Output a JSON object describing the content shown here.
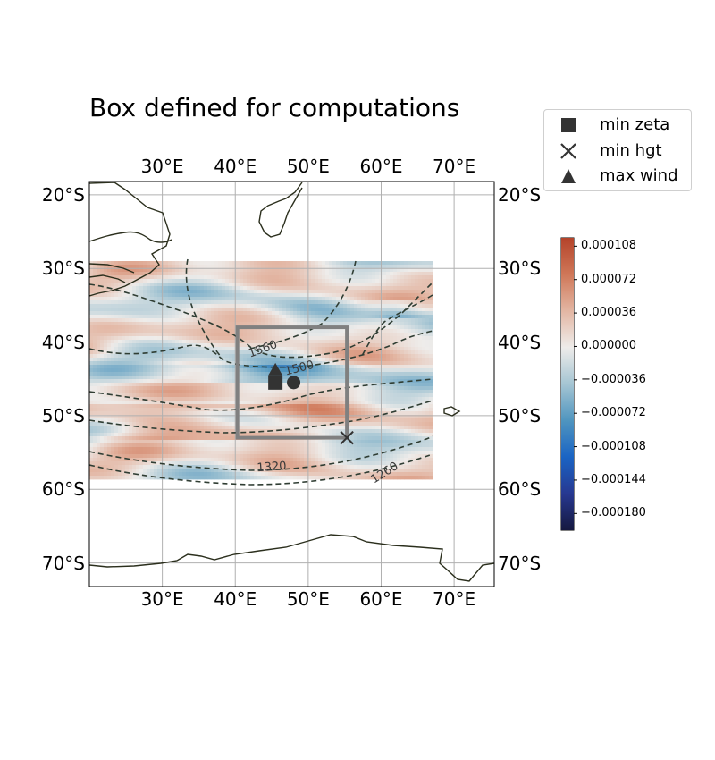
{
  "title": "Box defined for computations",
  "map": {
    "extent": {
      "lon_min": 20,
      "lon_max": 75.5,
      "lat_min": -73.2,
      "lat_max": -18.2
    },
    "lon_ticks": [
      {
        "value": 30,
        "label": "30°E"
      },
      {
        "value": 40,
        "label": "40°E"
      },
      {
        "value": 50,
        "label": "50°E"
      },
      {
        "value": 60,
        "label": "60°E"
      },
      {
        "value": 70,
        "label": "70°E"
      }
    ],
    "lat_ticks": [
      {
        "value": -20,
        "label": "20°S"
      },
      {
        "value": -30,
        "label": "30°S"
      },
      {
        "value": -40,
        "label": "40°S"
      },
      {
        "value": -50,
        "label": "50°S"
      },
      {
        "value": -60,
        "label": "60°S"
      },
      {
        "value": -70,
        "label": "70°S"
      }
    ],
    "field_extent": {
      "lon_min": 20,
      "lon_max": 66.8,
      "lat_min": -58.3,
      "lat_max": -29.0
    },
    "box": {
      "lon_min": 40.3,
      "lon_max": 55.3,
      "lat_min": -53.0,
      "lat_max": -38.0,
      "color": "#808080"
    },
    "markers": {
      "min_zeta": {
        "lon": 45.5,
        "lat": -45.5
      },
      "min_hgt": {
        "lon": 55.3,
        "lat": -53.0
      },
      "max_wind": {
        "lon": 45.5,
        "lat": -43.8
      },
      "circle": {
        "lon": 48.0,
        "lat": -45.5
      }
    },
    "contour_labels": [
      {
        "text": "1560",
        "lon": 43.8,
        "lat": -41.0,
        "rotate": -20
      },
      {
        "text": "1500",
        "lon": 48.8,
        "lat": -43.6,
        "rotate": -14
      },
      {
        "text": "1320",
        "lon": 45.0,
        "lat": -57.0,
        "rotate": -4
      },
      {
        "text": "1260",
        "lon": 60.5,
        "lat": -57.8,
        "rotate": -32
      }
    ]
  },
  "legend": {
    "items": [
      {
        "symbol": "square",
        "label": "min zeta"
      },
      {
        "symbol": "x",
        "label": "min hgt"
      },
      {
        "symbol": "triangle",
        "label": "max wind"
      }
    ]
  },
  "colorbar": {
    "min": -0.000198,
    "max": 0.000117,
    "ticks": [
      {
        "value": 0.000108,
        "label": "0.000108"
      },
      {
        "value": 7.2e-05,
        "label": "0.000072"
      },
      {
        "value": 3.6e-05,
        "label": "0.000036"
      },
      {
        "value": 0.0,
        "label": "0.000000"
      },
      {
        "value": -3.6e-05,
        "label": "−0.000036"
      },
      {
        "value": -7.2e-05,
        "label": "−0.000072"
      },
      {
        "value": -0.000108,
        "label": "−0.000108"
      },
      {
        "value": -0.000144,
        "label": "−0.000144"
      },
      {
        "value": -0.00018,
        "label": "−0.000180"
      }
    ],
    "colors": [
      "#15183f",
      "#273891",
      "#1a64c4",
      "#4f95bf",
      "#a5c5d3",
      "#eeecea",
      "#e3b6a3",
      "#cf7758",
      "#b4432a"
    ]
  },
  "colors": {
    "coastline": "#2b2f1d",
    "contour": "#2f3d33",
    "grid": "#b0b0b0",
    "marker": "#333333"
  }
}
